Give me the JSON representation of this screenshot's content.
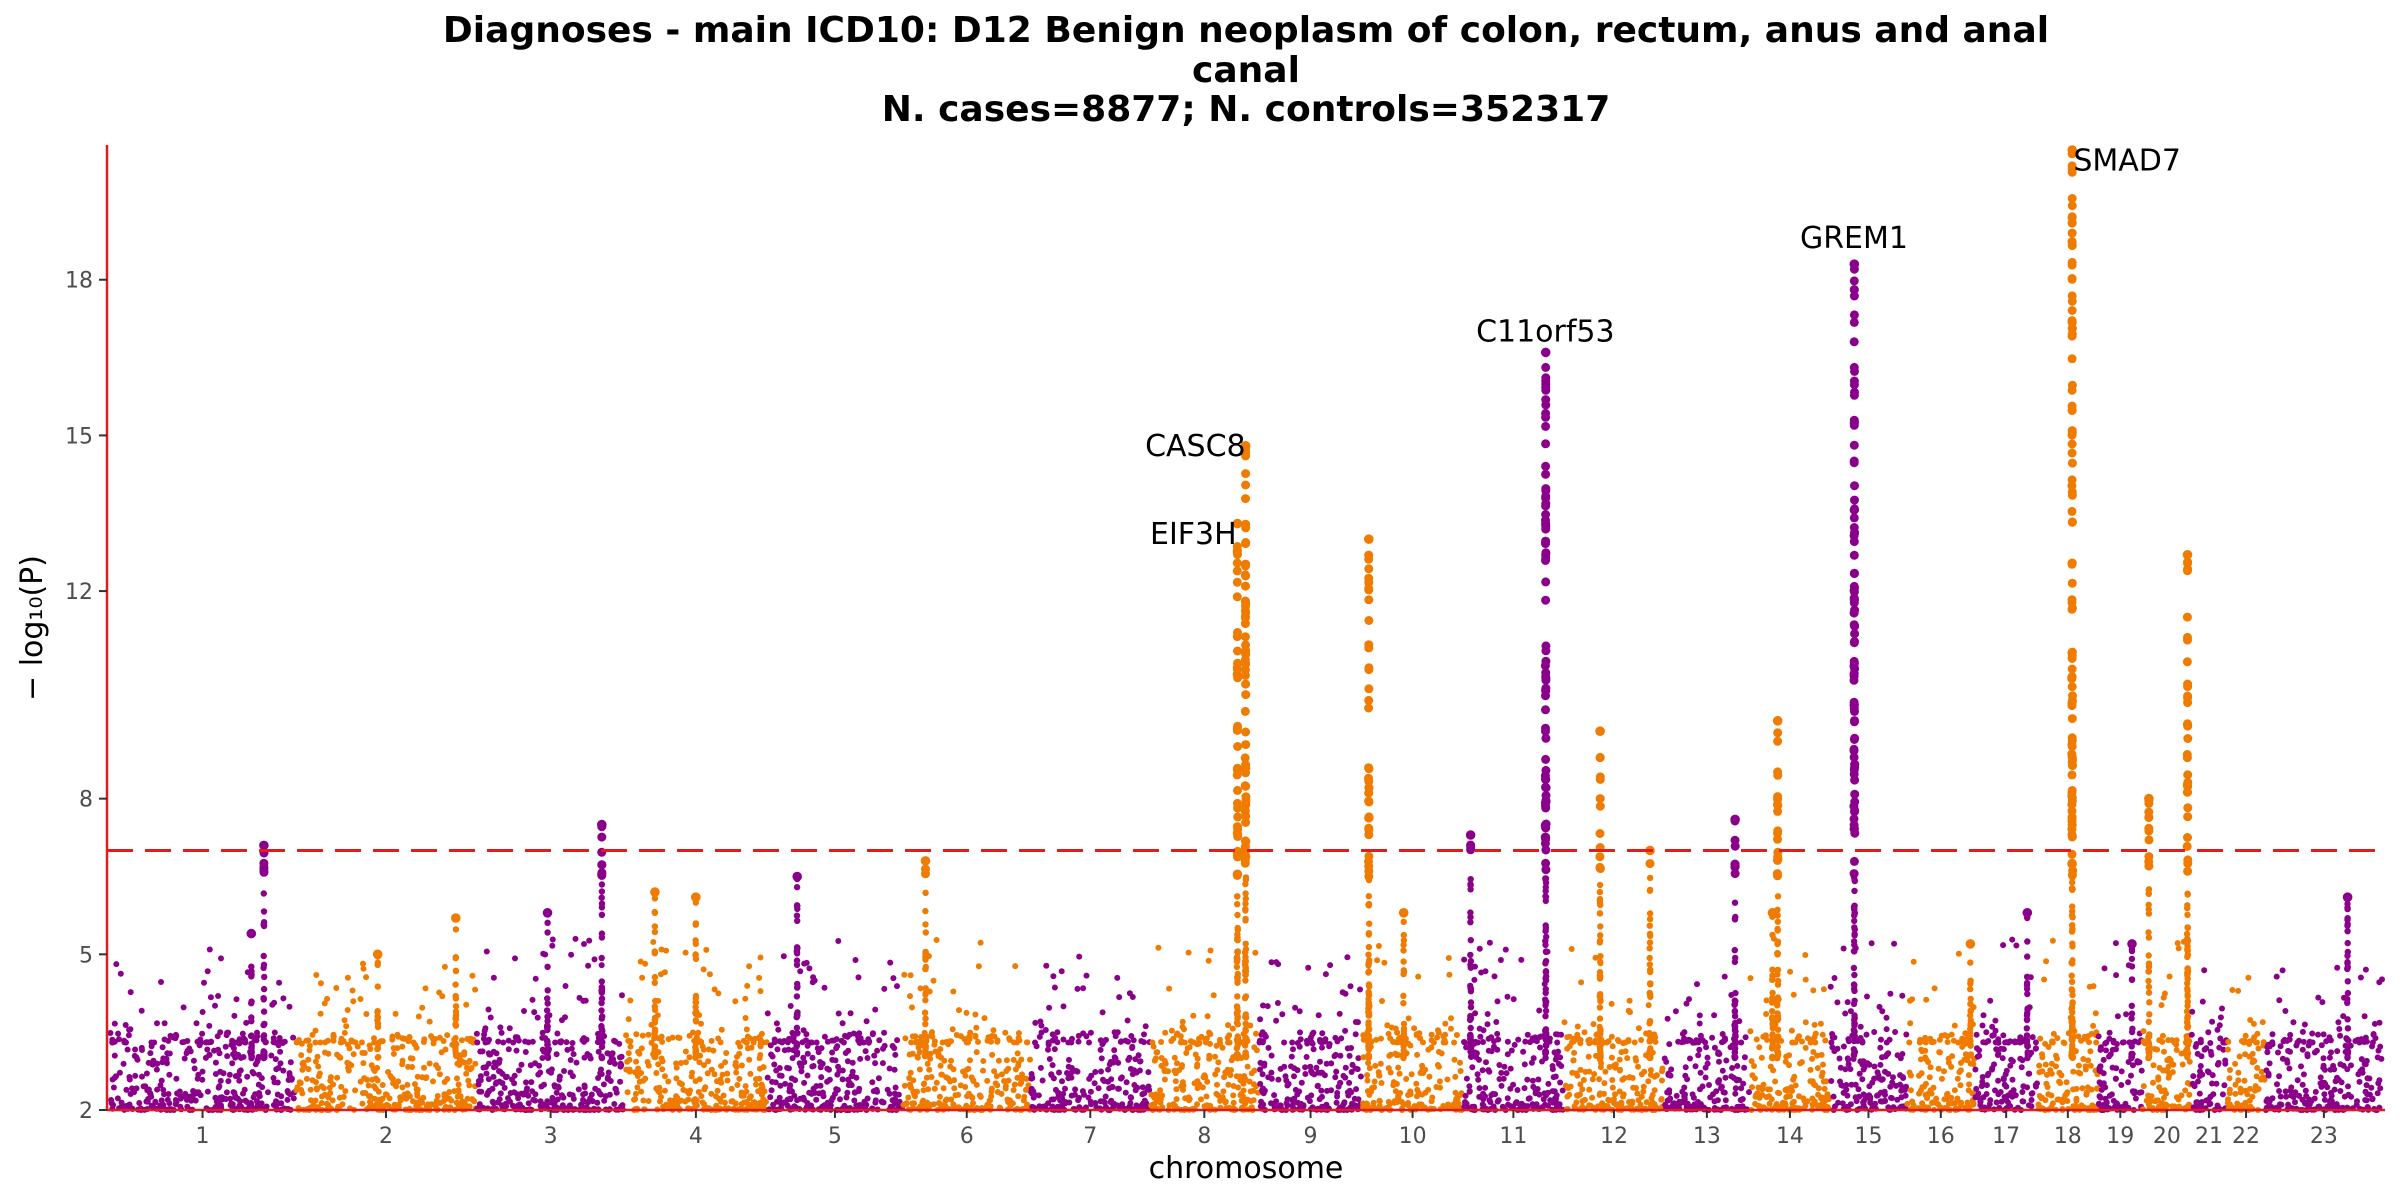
{
  "chart_data": {
    "type": "scatter",
    "subtype": "manhattan",
    "title_lines": [
      "Diagnoses - main ICD10: D12 Benign neoplasm of colon, rectum, anus and anal",
      "canal",
      "N. cases=8877; N. controls=352317"
    ],
    "xlabel": "chromosome",
    "ylabel": "− log₁₀(P)",
    "ylim": [
      2,
      20.5
    ],
    "y_ticks": [
      2,
      5,
      8,
      12,
      15,
      18
    ],
    "significance_line": 7,
    "colors": {
      "odd": "#8b008b",
      "even": "#ef7b00",
      "axis": "#e41a1c",
      "threshold": "#e41a1c"
    },
    "chromosomes": [
      {
        "label": "1",
        "start": 0.0,
        "end": 248.9
      },
      {
        "label": "2",
        "start": 250.0,
        "end": 492.2
      },
      {
        "label": "3",
        "start": 493.3,
        "end": 691.6
      },
      {
        "label": "4",
        "start": 692.7,
        "end": 882.9
      },
      {
        "label": "5",
        "start": 884.0,
        "end": 1065.5
      },
      {
        "label": "6",
        "start": 1066.6,
        "end": 1237.4
      },
      {
        "label": "7",
        "start": 1238.5,
        "end": 1397.8
      },
      {
        "label": "8",
        "start": 1398.9,
        "end": 1544.0
      },
      {
        "label": "9",
        "start": 1545.1,
        "end": 1683.5
      },
      {
        "label": "10",
        "start": 1684.6,
        "end": 1818.4
      },
      {
        "label": "11",
        "start": 1819.5,
        "end": 1954.6
      },
      {
        "label": "12",
        "start": 1955.7,
        "end": 2089.0
      },
      {
        "label": "13",
        "start": 2090.1,
        "end": 2204.3
      },
      {
        "label": "14",
        "start": 2205.4,
        "end": 2312.4
      },
      {
        "label": "15",
        "start": 2313.5,
        "end": 2415.5
      },
      {
        "label": "16",
        "start": 2416.6,
        "end": 2506.9
      },
      {
        "label": "17",
        "start": 2508.0,
        "end": 2591.3
      },
      {
        "label": "18",
        "start": 2592.4,
        "end": 2672.7
      },
      {
        "label": "19",
        "start": 2673.8,
        "end": 2732.4
      },
      {
        "label": "20",
        "start": 2733.5,
        "end": 2797.9
      },
      {
        "label": "21",
        "start": 2799.0,
        "end": 2845.7
      },
      {
        "label": "22",
        "start": 2846.8,
        "end": 2897.6
      },
      {
        "label": "23",
        "start": 2898.7,
        "end": 3055.0
      }
    ],
    "peaks": [
      {
        "chr": "1",
        "pos": 207,
        "max": 7.1
      },
      {
        "chr": "1",
        "pos": 190,
        "max": 5.4
      },
      {
        "chr": "2",
        "pos": 215,
        "max": 5.7
      },
      {
        "chr": "2",
        "pos": 110,
        "max": 5.0
      },
      {
        "chr": "3",
        "pos": 168,
        "max": 7.5
      },
      {
        "chr": "3",
        "pos": 95,
        "max": 5.8
      },
      {
        "chr": "4",
        "pos": 40,
        "max": 6.2
      },
      {
        "chr": "4",
        "pos": 95,
        "max": 6.1
      },
      {
        "chr": "5",
        "pos": 40,
        "max": 6.5
      },
      {
        "chr": "6",
        "pos": 30,
        "max": 6.8
      },
      {
        "chr": "8",
        "pos": 117,
        "max": 13.3
      },
      {
        "chr": "8",
        "pos": 128,
        "max": 14.8
      },
      {
        "chr": "10",
        "pos": 8,
        "max": 13.0
      },
      {
        "chr": "10",
        "pos": 55,
        "max": 5.8
      },
      {
        "chr": "11",
        "pos": 10,
        "max": 7.3
      },
      {
        "chr": "11",
        "pos": 111,
        "max": 16.6
      },
      {
        "chr": "12",
        "pos": 48,
        "max": 9.3
      },
      {
        "chr": "12",
        "pos": 115,
        "max": 7.0
      },
      {
        "chr": "13",
        "pos": 95,
        "max": 7.6
      },
      {
        "chr": "14",
        "pos": 37,
        "max": 9.5
      },
      {
        "chr": "14",
        "pos": 30,
        "max": 5.8
      },
      {
        "chr": "15",
        "pos": 32,
        "max": 18.3
      },
      {
        "chr": "16",
        "pos": 85,
        "max": 5.2
      },
      {
        "chr": "17",
        "pos": 70,
        "max": 5.8
      },
      {
        "chr": "18",
        "pos": 46,
        "max": 20.5
      },
      {
        "chr": "19",
        "pos": 45,
        "max": 5.2
      },
      {
        "chr": "20",
        "pos": 8,
        "max": 8.0
      },
      {
        "chr": "20",
        "pos": 60,
        "max": 12.7
      },
      {
        "chr": "23",
        "pos": 110,
        "max": 6.1
      }
    ],
    "annotations": [
      {
        "label": "CASC8",
        "x": 1527,
        "y": 14.8,
        "anchor": "end"
      },
      {
        "label": "EIF3H",
        "x": 1515,
        "y": 13.1,
        "anchor": "end"
      },
      {
        "label": "C11orf53",
        "x": 1930,
        "y": 17.0,
        "anchor": "middle"
      },
      {
        "label": "GREM1",
        "x": 2345,
        "y": 18.8,
        "anchor": "middle"
      },
      {
        "label": "SMAD7",
        "x": 2640,
        "y": 20.3,
        "anchor": "start"
      }
    ]
  }
}
